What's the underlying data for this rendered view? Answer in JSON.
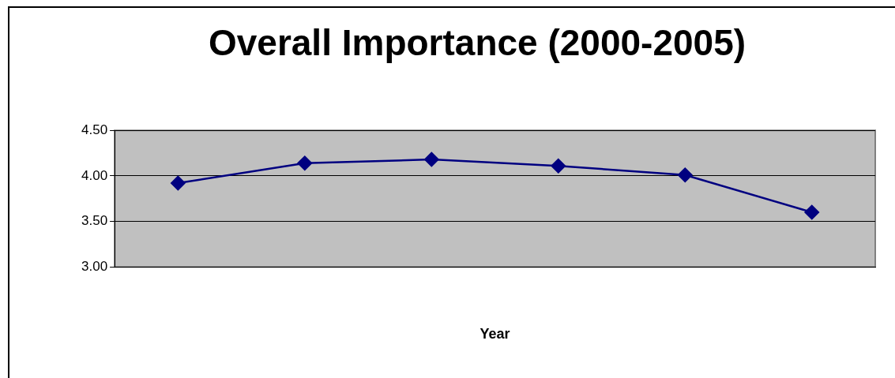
{
  "chart_data": {
    "type": "line",
    "title": "Overall Importance (2000-2005)",
    "xlabel": "Year",
    "categories": [
      null,
      null,
      null,
      null,
      null,
      null
    ],
    "series": [
      {
        "color": "#000080",
        "values": [
          3.92,
          4.14,
          4.18,
          4.11,
          4.01,
          3.6
        ]
      }
    ],
    "ylim": [
      3,
      4.5
    ],
    "yticks": [
      {
        "value": 3,
        "label": "3.00"
      },
      {
        "value": 3.5,
        "label": "3.50"
      },
      {
        "value": 4,
        "label": "4.00"
      },
      {
        "value": 4.5,
        "label": "4.50"
      }
    ],
    "grid": "y",
    "legend": false,
    "marker": "diamond",
    "line_style": "solid"
  }
}
